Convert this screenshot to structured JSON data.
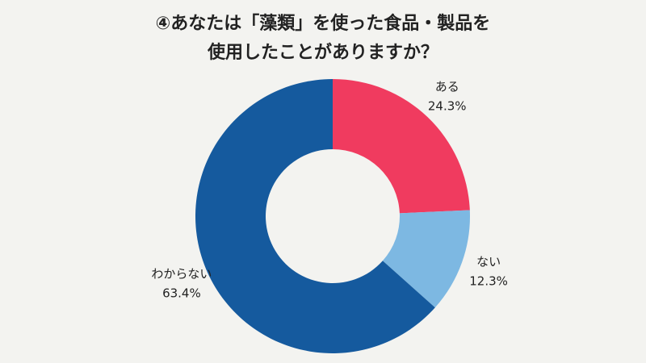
{
  "chart_data": {
    "type": "donut",
    "title": [
      "④あなたは「藻類」を使った食品・製品を",
      "使用したことがありますか？"
    ],
    "categories": [
      "ある",
      "ない",
      "わからない"
    ],
    "values": [
      24.3,
      12.3,
      63.4
    ],
    "value_labels": [
      "24.3%",
      "12.3%",
      "63.4%"
    ],
    "colors": [
      "#f03b5f",
      "#7db8e2",
      "#155a9e"
    ]
  }
}
